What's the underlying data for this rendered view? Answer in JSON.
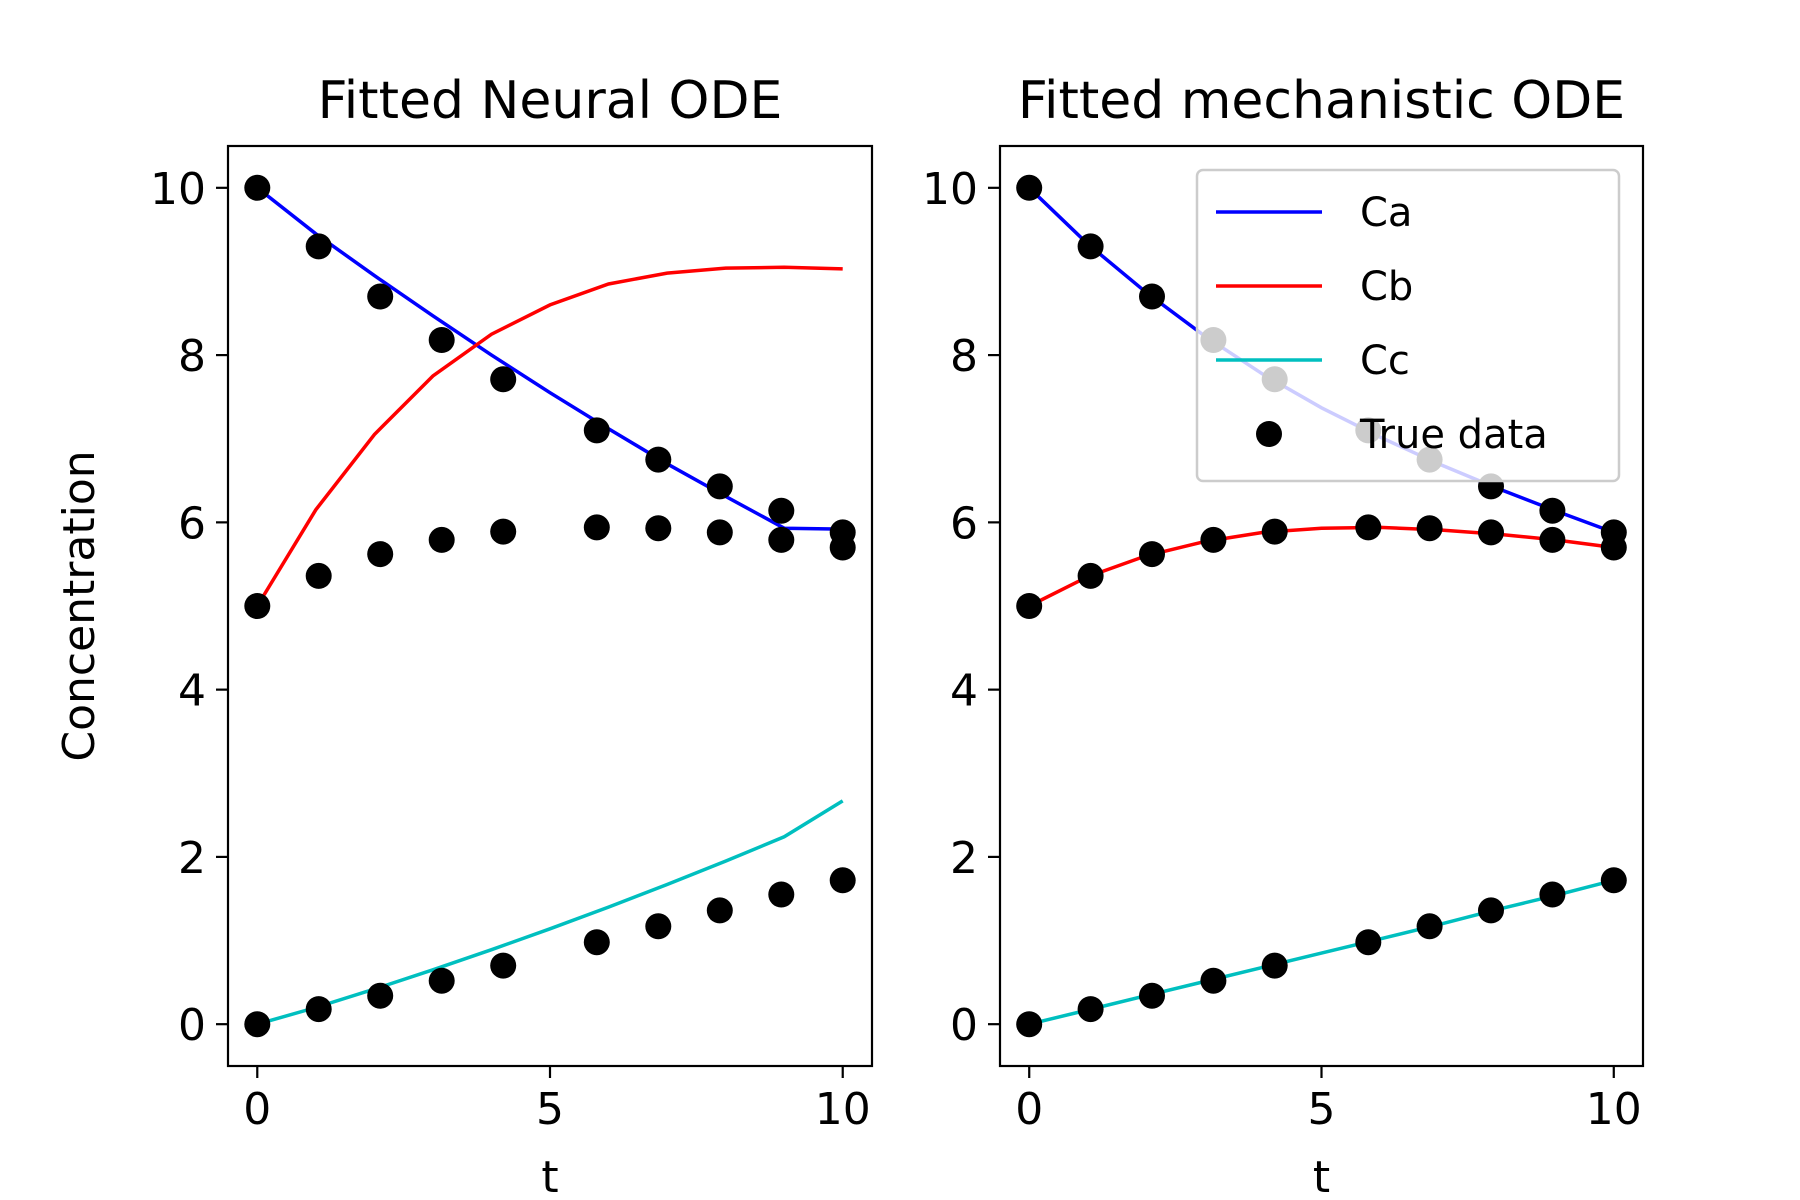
{
  "chart_data": [
    {
      "type": "line",
      "title": "Fitted Neural ODE",
      "xlabel": "t",
      "ylabel": "Concentration",
      "xlim": [
        -0.5,
        10.5
      ],
      "ylim": [
        -0.5,
        10.5
      ],
      "xticks": [
        0,
        5,
        10
      ],
      "yticks": [
        0,
        2,
        4,
        6,
        8,
        10
      ],
      "grid": false,
      "series": [
        {
          "name": "Ca",
          "color": "#0000ff",
          "x": [
            0,
            1,
            2,
            3,
            4,
            5,
            6,
            7,
            8,
            9,
            10
          ],
          "y": [
            10.0,
            9.45,
            8.95,
            8.47,
            8.0,
            7.55,
            7.12,
            6.7,
            6.31,
            5.93,
            5.92
          ]
        },
        {
          "name": "Cb",
          "color": "#ff0000",
          "x": [
            0,
            1,
            2,
            3,
            4,
            5,
            6,
            7,
            8,
            9,
            10
          ],
          "y": [
            5.0,
            6.15,
            7.05,
            7.75,
            8.25,
            8.6,
            8.85,
            8.98,
            9.04,
            9.05,
            9.03
          ]
        },
        {
          "name": "Cc",
          "color": "#00bfbf",
          "x": [
            0,
            1,
            2,
            3,
            4,
            5,
            6,
            7,
            8,
            9,
            10
          ],
          "y": [
            0.0,
            0.2,
            0.42,
            0.65,
            0.89,
            1.14,
            1.4,
            1.67,
            1.95,
            2.24,
            2.67
          ]
        }
      ],
      "true_data": {
        "name": "True data",
        "color": "#000000",
        "x": [
          0,
          1.05,
          2.1,
          3.15,
          4.2,
          5.8,
          6.85,
          7.9,
          8.95,
          10
        ],
        "Ca": [
          10.0,
          9.3,
          8.7,
          8.18,
          7.71,
          7.1,
          6.75,
          6.43,
          6.14,
          5.88
        ],
        "Cb": [
          5.0,
          5.36,
          5.62,
          5.79,
          5.89,
          5.94,
          5.93,
          5.88,
          5.79,
          5.7
        ],
        "Cc": [
          0.0,
          0.18,
          0.34,
          0.52,
          0.7,
          0.98,
          1.17,
          1.36,
          1.55,
          1.72
        ]
      }
    },
    {
      "type": "line",
      "title": "Fitted mechanistic ODE",
      "xlabel": "t",
      "ylabel": "",
      "xlim": [
        -0.5,
        10.5
      ],
      "ylim": [
        -0.5,
        10.5
      ],
      "xticks": [
        0,
        5,
        10
      ],
      "yticks": [
        0,
        2,
        4,
        6,
        8,
        10
      ],
      "grid": false,
      "legend": {
        "placement": "top-right",
        "entries": [
          "Ca",
          "Cb",
          "Cc",
          "True data"
        ]
      },
      "series": [
        {
          "name": "Ca",
          "color": "#0000ff",
          "x": [
            0,
            1,
            2,
            3,
            4,
            5,
            6,
            7,
            8,
            9,
            10
          ],
          "y": [
            10.0,
            9.33,
            8.75,
            8.23,
            7.77,
            7.37,
            7.02,
            6.7,
            6.41,
            6.14,
            5.88
          ]
        },
        {
          "name": "Cb",
          "color": "#ff0000",
          "x": [
            0,
            1,
            2,
            3,
            4,
            5,
            6,
            7,
            8,
            9,
            10
          ],
          "y": [
            5.0,
            5.35,
            5.6,
            5.77,
            5.88,
            5.93,
            5.94,
            5.91,
            5.86,
            5.79,
            5.7
          ]
        },
        {
          "name": "Cc",
          "color": "#00bfbf",
          "x": [
            0,
            1,
            2,
            3,
            4,
            5,
            6,
            7,
            8,
            9,
            10
          ],
          "y": [
            0.0,
            0.17,
            0.34,
            0.51,
            0.68,
            0.85,
            1.02,
            1.19,
            1.37,
            1.54,
            1.72
          ]
        }
      ],
      "true_data": {
        "name": "True data",
        "color": "#000000",
        "x": [
          0,
          1.05,
          2.1,
          3.15,
          4.2,
          5.8,
          6.85,
          7.9,
          8.95,
          10
        ],
        "Ca": [
          10.0,
          9.3,
          8.7,
          8.18,
          7.71,
          7.1,
          6.75,
          6.43,
          6.14,
          5.88
        ],
        "Cb": [
          5.0,
          5.36,
          5.62,
          5.79,
          5.89,
          5.94,
          5.93,
          5.88,
          5.79,
          5.7
        ],
        "Cc": [
          0.0,
          0.18,
          0.34,
          0.52,
          0.7,
          0.98,
          1.17,
          1.36,
          1.55,
          1.72
        ]
      }
    }
  ]
}
